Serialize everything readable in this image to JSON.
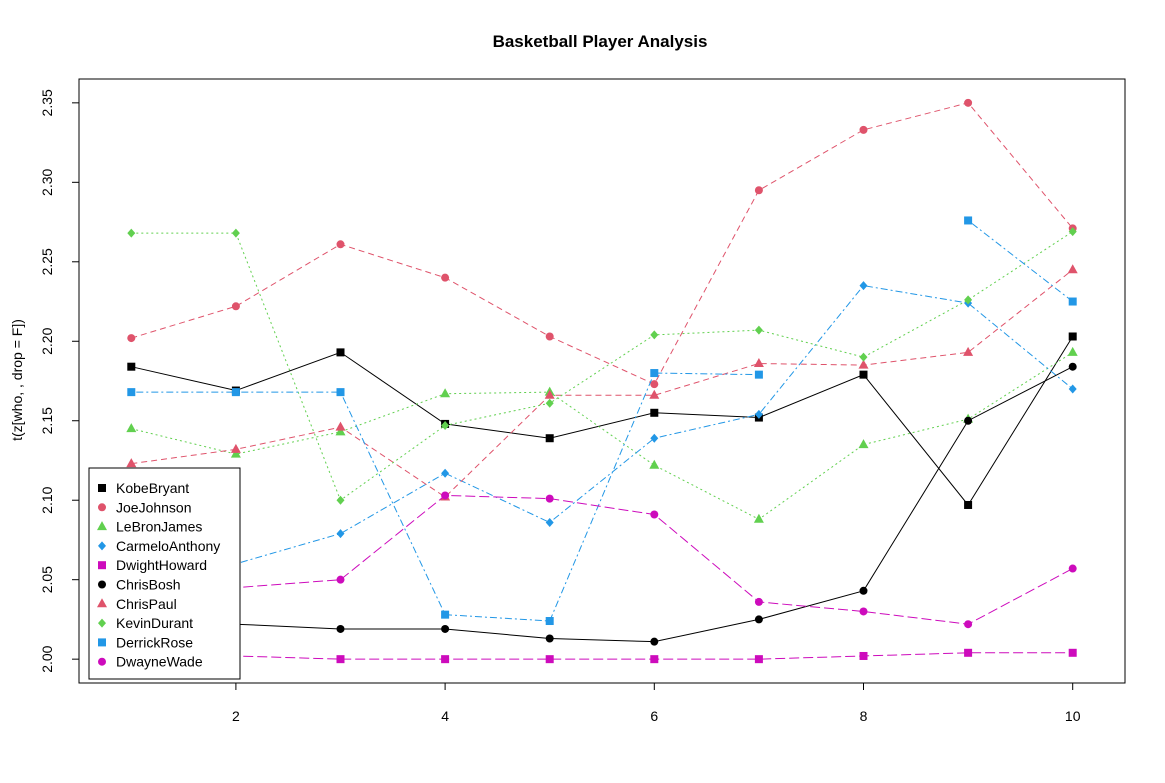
{
  "chart_data": {
    "type": "line",
    "title": "Basketball Player Analysis",
    "xlabel": "",
    "ylabel": "t(z[who, , drop = F])",
    "xlim": [
      0.5,
      10.5
    ],
    "ylim": [
      1.985,
      2.365
    ],
    "xticks": [
      2,
      4,
      6,
      8,
      10
    ],
    "yticks": [
      2.0,
      2.05,
      2.1,
      2.15,
      2.2,
      2.25,
      2.3,
      2.35
    ],
    "ytick_labels": [
      "2.00",
      "2.05",
      "2.10",
      "2.15",
      "2.20",
      "2.25",
      "2.30",
      "2.35"
    ],
    "legend_position": "bottom-left",
    "x": [
      1,
      2,
      3,
      4,
      5,
      6,
      7,
      8,
      9,
      10
    ],
    "series": [
      {
        "name": "KobeBryant",
        "color": "#000000",
        "marker": "square",
        "dash": "",
        "values": [
          2.184,
          2.169,
          2.193,
          2.148,
          2.139,
          2.155,
          2.152,
          2.179,
          2.097,
          2.203
        ]
      },
      {
        "name": "JoeJohnson",
        "color": "#DF536B",
        "marker": "circle",
        "dash": "6 4",
        "values": [
          2.202,
          2.222,
          2.261,
          2.24,
          2.203,
          2.173,
          2.295,
          2.333,
          2.35,
          2.271
        ]
      },
      {
        "name": "LeBronJames",
        "color": "#61D04F",
        "marker": "triangle",
        "dash": "2 3",
        "values": [
          2.145,
          2.129,
          2.143,
          2.167,
          2.168,
          2.122,
          2.088,
          2.135,
          2.151,
          2.193
        ]
      },
      {
        "name": "CarmeloAnthony",
        "color": "#2297E6",
        "marker": "diamond",
        "dash": "2 3 7 3",
        "values": [
          2.056,
          2.06,
          2.079,
          2.117,
          2.086,
          2.139,
          2.154,
          2.235,
          2.224,
          2.17
        ]
      },
      {
        "name": "DwightHoward",
        "color": "#CD0BBC",
        "marker": "square",
        "dash": "10 4",
        "values": [
          2.004,
          2.002,
          2.0,
          2.0,
          2.0,
          2.0,
          2.0,
          2.002,
          2.004,
          2.004
        ]
      },
      {
        "name": "ChrisBosh",
        "color": "#000000",
        "marker": "circle",
        "dash": "",
        "values": [
          2.023,
          2.022,
          2.019,
          2.019,
          2.013,
          2.011,
          2.025,
          2.043,
          2.15,
          2.184
        ]
      },
      {
        "name": "ChrisPaul",
        "color": "#DF536B",
        "marker": "triangle",
        "dash": "6 4",
        "values": [
          2.123,
          2.132,
          2.146,
          2.102,
          2.166,
          2.166,
          2.186,
          2.185,
          2.193,
          2.245
        ]
      },
      {
        "name": "KevinDurant",
        "color": "#61D04F",
        "marker": "diamond",
        "dash": "2 3",
        "values": [
          2.268,
          2.268,
          2.1,
          2.147,
          2.161,
          2.204,
          2.207,
          2.19,
          2.226,
          2.269
        ]
      },
      {
        "name": "DerrickRose",
        "color": "#2297E6",
        "marker": "square",
        "dash": "2 3 7 3",
        "values": [
          2.168,
          2.168,
          2.168,
          2.028,
          2.024,
          2.18,
          2.179,
          null,
          2.276,
          2.225
        ]
      },
      {
        "name": "DwayneWade",
        "color": "#CD0BBC",
        "marker": "circle",
        "dash": "10 4",
        "values": [
          2.045,
          2.045,
          2.05,
          2.103,
          2.101,
          2.091,
          2.036,
          2.03,
          2.022,
          2.057
        ]
      }
    ]
  }
}
